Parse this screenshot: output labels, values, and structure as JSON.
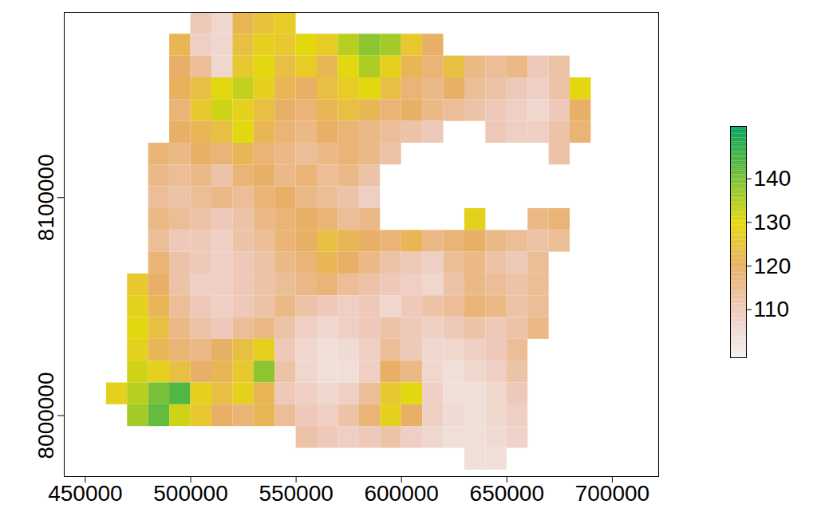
{
  "chart_data": {
    "type": "heatmap",
    "x": [
      465000,
      475000,
      485000,
      495000,
      505000,
      515000,
      525000,
      535000,
      545000,
      555000,
      565000,
      575000,
      585000,
      595000,
      605000,
      615000,
      625000,
      635000,
      645000,
      655000,
      665000,
      675000,
      685000
    ],
    "y": [
      8180000,
      8170000,
      8160000,
      8150000,
      8140000,
      8130000,
      8120000,
      8110000,
      8100000,
      8090000,
      8080000,
      8070000,
      8060000,
      8050000,
      8040000,
      8030000,
      8020000,
      8010000,
      8000000,
      7990000,
      7980000
    ],
    "values": [
      [
        null,
        null,
        null,
        null,
        110,
        106,
        122,
        125,
        127,
        null,
        null,
        null,
        null,
        null,
        null,
        null,
        null,
        null,
        null,
        null,
        null,
        null,
        null
      ],
      [
        null,
        null,
        null,
        122,
        108,
        106,
        124,
        128,
        126,
        130,
        127,
        134,
        138,
        136,
        126,
        120,
        null,
        null,
        null,
        null,
        null,
        null,
        null
      ],
      [
        null,
        null,
        null,
        120,
        114,
        106,
        126,
        130,
        124,
        127,
        122,
        130,
        135,
        128,
        122,
        118,
        124,
        116,
        114,
        116,
        110,
        112,
        null
      ],
      [
        null,
        null,
        null,
        121,
        124,
        130,
        133,
        128,
        122,
        120,
        124,
        127,
        130,
        124,
        118,
        116,
        120,
        114,
        112,
        110,
        108,
        112,
        130
      ],
      [
        null,
        null,
        null,
        118,
        126,
        132,
        128,
        124,
        120,
        118,
        122,
        124,
        122,
        118,
        120,
        116,
        114,
        112,
        110,
        108,
        106,
        110,
        120
      ],
      [
        null,
        null,
        null,
        120,
        122,
        124,
        130,
        122,
        118,
        116,
        120,
        118,
        116,
        114,
        112,
        110,
        null,
        null,
        110,
        108,
        108,
        112,
        118
      ],
      [
        null,
        null,
        118,
        116,
        120,
        118,
        122,
        118,
        116,
        114,
        116,
        118,
        116,
        112,
        null,
        null,
        null,
        null,
        null,
        null,
        null,
        112,
        null
      ],
      [
        null,
        null,
        116,
        114,
        116,
        112,
        118,
        120,
        116,
        118,
        114,
        116,
        112,
        null,
        null,
        null,
        null,
        null,
        null,
        null,
        null,
        null,
        null
      ],
      [
        null,
        null,
        114,
        112,
        114,
        116,
        114,
        118,
        120,
        116,
        114,
        112,
        108,
        null,
        null,
        null,
        null,
        null,
        null,
        null,
        null,
        null,
        null
      ],
      [
        null,
        null,
        116,
        114,
        112,
        110,
        112,
        116,
        118,
        120,
        118,
        114,
        116,
        null,
        null,
        null,
        null,
        128,
        null,
        null,
        116,
        118,
        null
      ],
      [
        null,
        null,
        114,
        110,
        110,
        108,
        112,
        114,
        118,
        120,
        124,
        122,
        120,
        118,
        122,
        116,
        118,
        120,
        116,
        114,
        112,
        114,
        null
      ],
      [
        null,
        null,
        118,
        112,
        110,
        108,
        110,
        112,
        116,
        118,
        122,
        120,
        116,
        112,
        110,
        108,
        114,
        116,
        112,
        110,
        114,
        null,
        null
      ],
      [
        null,
        126,
        120,
        112,
        108,
        108,
        110,
        112,
        114,
        116,
        118,
        114,
        112,
        110,
        108,
        106,
        112,
        116,
        114,
        112,
        114,
        null,
        null
      ],
      [
        null,
        128,
        122,
        114,
        110,
        108,
        110,
        112,
        116,
        112,
        110,
        108,
        110,
        106,
        110,
        112,
        114,
        118,
        116,
        112,
        114,
        null,
        null
      ],
      [
        null,
        130,
        124,
        116,
        112,
        110,
        114,
        116,
        112,
        108,
        106,
        108,
        110,
        112,
        110,
        108,
        110,
        112,
        110,
        112,
        116,
        null,
        null
      ],
      [
        null,
        128,
        122,
        118,
        116,
        120,
        124,
        128,
        110,
        106,
        104,
        105,
        108,
        114,
        110,
        106,
        106,
        108,
        110,
        114,
        null,
        null,
        null
      ],
      [
        null,
        132,
        128,
        124,
        120,
        122,
        126,
        138,
        112,
        106,
        104,
        104,
        108,
        120,
        116,
        106,
        104,
        106,
        108,
        112,
        null,
        null,
        null
      ],
      [
        128,
        134,
        140,
        144,
        128,
        124,
        128,
        122,
        110,
        108,
        106,
        108,
        114,
        126,
        130,
        108,
        104,
        104,
        106,
        110,
        null,
        null,
        null
      ],
      [
        null,
        136,
        142,
        132,
        126,
        120,
        118,
        122,
        114,
        110,
        108,
        112,
        118,
        128,
        120,
        108,
        105,
        104,
        106,
        108,
        null,
        null,
        null
      ],
      [
        null,
        null,
        null,
        null,
        null,
        null,
        null,
        null,
        null,
        112,
        110,
        108,
        110,
        112,
        108,
        106,
        104,
        104,
        105,
        107,
        null,
        null,
        null
      ],
      [
        null,
        null,
        null,
        null,
        null,
        null,
        null,
        null,
        null,
        null,
        null,
        null,
        null,
        null,
        null,
        null,
        null,
        104,
        104,
        null,
        null,
        null,
        null
      ]
    ],
    "xlim": [
      440000,
      722000
    ],
    "ylim": [
      7972000,
      8185000
    ],
    "xticks": [
      450000,
      500000,
      550000,
      600000,
      650000,
      700000
    ],
    "yticks": [
      8000000,
      8100000
    ],
    "colorbar": {
      "range": [
        99,
        152
      ],
      "ticks": [
        110,
        120,
        130,
        140
      ]
    }
  }
}
